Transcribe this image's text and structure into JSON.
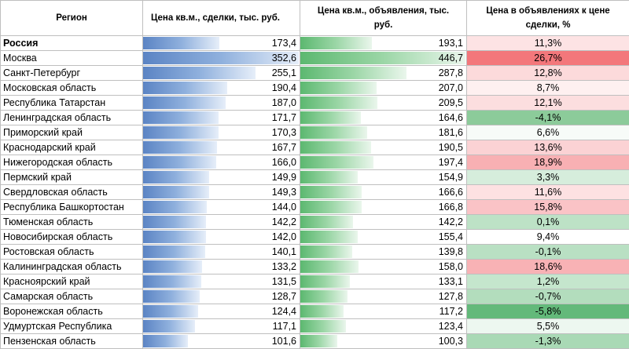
{
  "headers": {
    "region": "Регион",
    "deal_price": "Цена кв.м., сделки, тыс. руб.",
    "listing_price_line1": "Цена кв.м., объявления, тыс.",
    "listing_price_line2": "руб.",
    "diff_line1": "Цена в объявлениях к цене",
    "diff_line2": "сделки, %"
  },
  "rows": [
    {
      "region": "Россия",
      "deal": "173,4",
      "listing": "193,1",
      "diff": "11,3%",
      "diff_color": "#fde3e4",
      "bold": true
    },
    {
      "region": "Москва",
      "deal": "352,6",
      "listing": "446,7",
      "diff": "26,7%",
      "diff_color": "#f3777b",
      "bold": false
    },
    {
      "region": "Санкт-Петербург",
      "deal": "255,1",
      "listing": "287,8",
      "diff": "12,8%",
      "diff_color": "#fcdadb",
      "bold": false
    },
    {
      "region": "Московская область",
      "deal": "190,4",
      "listing": "207,0",
      "diff": "8,7%",
      "diff_color": "#fef0f0",
      "bold": false
    },
    {
      "region": "Республика Татарстан",
      "deal": "187,0",
      "listing": "209,5",
      "diff": "12,1%",
      "diff_color": "#fcdedf",
      "bold": false
    },
    {
      "region": "Ленинградская область",
      "deal": "171,7",
      "listing": "164,6",
      "diff": "-4,1%",
      "diff_color": "#8ccb9a",
      "bold": false
    },
    {
      "region": "Приморский край",
      "deal": "170,3",
      "listing": "181,6",
      "diff": "6,6%",
      "diff_color": "#f7fbf8",
      "bold": false
    },
    {
      "region": "Краснодарский край",
      "deal": "167,7",
      "listing": "190,5",
      "diff": "13,6%",
      "diff_color": "#fbd2d4",
      "bold": false
    },
    {
      "region": "Нижегородская область",
      "deal": "166,0",
      "listing": "197,4",
      "diff": "18,9%",
      "diff_color": "#f8b0b3",
      "bold": false
    },
    {
      "region": "Пермский край",
      "deal": "149,9",
      "listing": "154,9",
      "diff": "3,3%",
      "diff_color": "#d6eddc",
      "bold": false
    },
    {
      "region": "Свердловская область",
      "deal": "149,3",
      "listing": "166,6",
      "diff": "11,6%",
      "diff_color": "#fde1e2",
      "bold": false
    },
    {
      "region": "Республика Башкортостан",
      "deal": "144,0",
      "listing": "166,8",
      "diff": "15,8%",
      "diff_color": "#fac3c6",
      "bold": false
    },
    {
      "region": "Тюменская область",
      "deal": "142,2",
      "listing": "142,2",
      "diff": "0,1%",
      "diff_color": "#bde2c6",
      "bold": false
    },
    {
      "region": "Новосибирская область",
      "deal": "142,0",
      "listing": "155,4",
      "diff": "9,4%",
      "diff_color": "#ffffff",
      "bold": false
    },
    {
      "region": "Ростовская область",
      "deal": "140,1",
      "listing": "139,8",
      "diff": "-0,1%",
      "diff_color": "#b9e0c3",
      "bold": false
    },
    {
      "region": "Калининградская область",
      "deal": "133,2",
      "listing": "158,0",
      "diff": "18,6%",
      "diff_color": "#f8b2b5",
      "bold": false
    },
    {
      "region": "Красноярский край",
      "deal": "131,5",
      "listing": "133,1",
      "diff": "1,2%",
      "diff_color": "#c5e6cd",
      "bold": false
    },
    {
      "region": "Самарская область",
      "deal": "128,7",
      "listing": "127,8",
      "diff": "-0,7%",
      "diff_color": "#b3ddbd",
      "bold": false
    },
    {
      "region": "Воронежская область",
      "deal": "124,4",
      "listing": "117,2",
      "diff": "-5,8%",
      "diff_color": "#63b97a",
      "bold": false
    },
    {
      "region": "Удмуртская Республика",
      "deal": "117,1",
      "listing": "123,4",
      "diff": "5,5%",
      "diff_color": "#edf7f0",
      "bold": false
    },
    {
      "region": "Пензенская область",
      "deal": "101,6",
      "listing": "100,3",
      "diff": "-1,3%",
      "diff_color": "#a9d9b5",
      "bold": false
    }
  ]
}
